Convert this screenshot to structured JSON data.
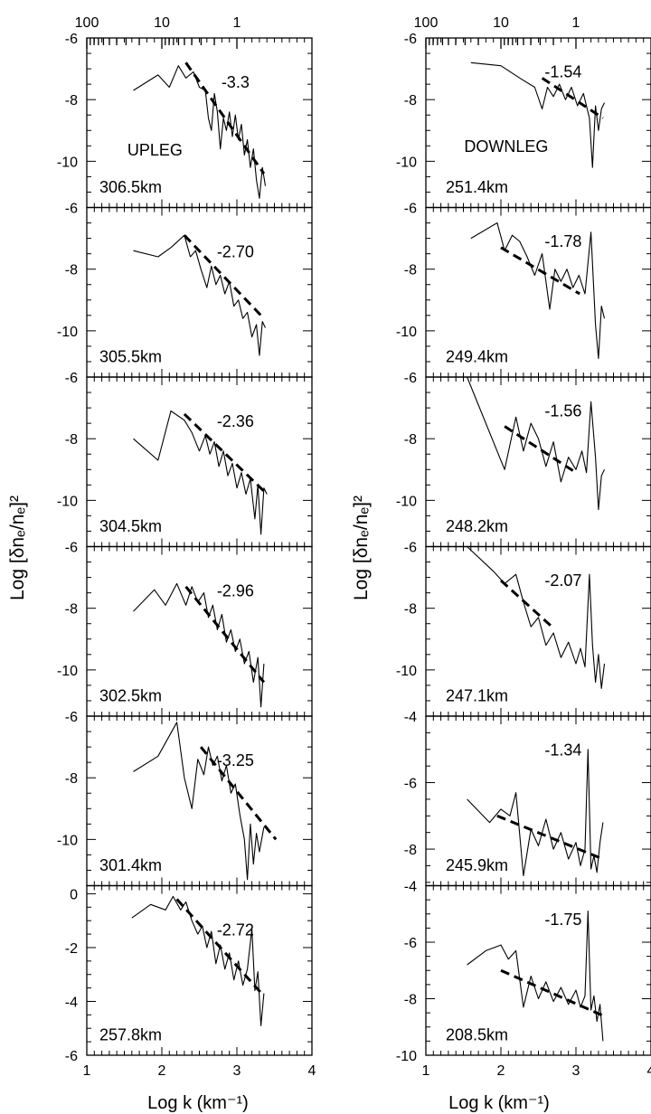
{
  "figure": {
    "x_axis_label": "Log k (km⁻¹)",
    "y_axis_label": "Log [δnₑ/nₑ]²",
    "top_axis_ticks": [
      "100",
      "10",
      "1"
    ],
    "bottom_axis_ticks": [
      "1",
      "2",
      "3",
      "4"
    ]
  },
  "chart_data": [
    {
      "type": "line",
      "column": "left",
      "row": 0,
      "heading": "UPLEG",
      "altitude_label": "306.5km",
      "slope_label": "-3.3",
      "xlim": [
        1,
        4
      ],
      "ylim": [
        -11.5,
        -6
      ],
      "yticks": [
        -6,
        -8,
        -10
      ],
      "x": [
        1.62,
        1.95,
        2.1,
        2.22,
        2.32,
        2.42,
        2.5,
        2.58,
        2.62,
        2.66,
        2.7,
        2.74,
        2.78,
        2.82,
        2.86,
        2.9,
        2.94,
        2.98,
        3.02,
        3.06,
        3.1,
        3.14,
        3.18,
        3.22,
        3.26,
        3.3,
        3.34,
        3.38
      ],
      "y": [
        -7.7,
        -7.2,
        -7.6,
        -6.9,
        -7.3,
        -7.1,
        -7.6,
        -7.7,
        -8.6,
        -9.0,
        -7.8,
        -8.4,
        -9.6,
        -8.6,
        -9.0,
        -8.4,
        -9.2,
        -8.5,
        -9.3,
        -8.8,
        -9.8,
        -9.3,
        -10.2,
        -9.6,
        -10.6,
        -11.2,
        -10.2,
        -10.8
      ],
      "fit": {
        "x": [
          2.32,
          3.36
        ],
        "y": [
          -6.8,
          -10.4
        ]
      }
    },
    {
      "type": "line",
      "column": "left",
      "row": 1,
      "altitude_label": "305.5km",
      "slope_label": "-2.70",
      "xlim": [
        1,
        4
      ],
      "ylim": [
        -11.5,
        -6
      ],
      "yticks": [
        -6,
        -8,
        -10
      ],
      "x": [
        1.62,
        1.95,
        2.12,
        2.3,
        2.38,
        2.45,
        2.52,
        2.6,
        2.66,
        2.72,
        2.78,
        2.84,
        2.9,
        2.96,
        3.02,
        3.08,
        3.14,
        3.2,
        3.26,
        3.3,
        3.34,
        3.38
      ],
      "y": [
        -7.4,
        -7.6,
        -7.3,
        -6.9,
        -7.6,
        -7.4,
        -8.0,
        -8.6,
        -7.9,
        -8.5,
        -8.2,
        -8.8,
        -8.4,
        -9.2,
        -9.0,
        -9.6,
        -9.4,
        -10.2,
        -9.8,
        -10.8,
        -9.7,
        -9.9
      ],
      "fit": {
        "x": [
          2.3,
          3.36
        ],
        "y": [
          -6.9,
          -9.6
        ]
      }
    },
    {
      "type": "line",
      "column": "left",
      "row": 2,
      "altitude_label": "304.5km",
      "slope_label": "-2.36",
      "xlim": [
        1,
        4
      ],
      "ylim": [
        -11.5,
        -6
      ],
      "yticks": [
        -6,
        -8,
        -10
      ],
      "x": [
        1.62,
        1.95,
        2.12,
        2.3,
        2.4,
        2.5,
        2.58,
        2.64,
        2.7,
        2.76,
        2.82,
        2.88,
        2.94,
        3.0,
        3.06,
        3.12,
        3.18,
        3.24,
        3.28,
        3.32,
        3.36,
        3.4
      ],
      "y": [
        -8.0,
        -8.7,
        -7.1,
        -7.4,
        -7.8,
        -8.4,
        -7.9,
        -8.5,
        -8.1,
        -8.9,
        -8.4,
        -9.2,
        -8.8,
        -9.6,
        -9.1,
        -9.8,
        -9.3,
        -10.6,
        -9.5,
        -11.1,
        -9.6,
        -9.8
      ],
      "fit": {
        "x": [
          2.3,
          3.36
        ],
        "y": [
          -7.2,
          -9.7
        ]
      }
    },
    {
      "type": "line",
      "column": "left",
      "row": 3,
      "altitude_label": "302.5km",
      "slope_label": "-2.96",
      "xlim": [
        1,
        4
      ],
      "ylim": [
        -11.5,
        -6
      ],
      "yticks": [
        -6,
        -8,
        -10
      ],
      "x": [
        1.62,
        1.9,
        2.05,
        2.2,
        2.32,
        2.4,
        2.48,
        2.56,
        2.62,
        2.68,
        2.74,
        2.8,
        2.86,
        2.92,
        2.98,
        3.04,
        3.1,
        3.16,
        3.22,
        3.28,
        3.32,
        3.36
      ],
      "y": [
        -8.1,
        -7.4,
        -7.9,
        -7.2,
        -7.9,
        -7.3,
        -7.8,
        -7.5,
        -8.3,
        -7.9,
        -8.7,
        -8.2,
        -9.1,
        -8.7,
        -9.4,
        -9.0,
        -9.8,
        -9.4,
        -10.4,
        -9.6,
        -11.2,
        -9.8
      ],
      "fit": {
        "x": [
          2.32,
          3.36
        ],
        "y": [
          -7.3,
          -10.4
        ]
      }
    },
    {
      "type": "line",
      "column": "left",
      "row": 4,
      "altitude_label": "301.4km",
      "slope_label": "-3.25",
      "xlim": [
        1,
        4
      ],
      "ylim": [
        -11.5,
        -6
      ],
      "yticks": [
        -6,
        -8,
        -10
      ],
      "x": [
        1.62,
        1.95,
        2.2,
        2.3,
        2.4,
        2.48,
        2.56,
        2.62,
        2.68,
        2.74,
        2.8,
        2.86,
        2.92,
        2.98,
        3.04,
        3.1,
        3.14,
        3.18,
        3.22,
        3.26,
        3.3,
        3.36
      ],
      "y": [
        -7.8,
        -7.3,
        -6.2,
        -8.0,
        -9.0,
        -7.4,
        -7.9,
        -7.0,
        -7.6,
        -7.3,
        -8.1,
        -7.6,
        -8.5,
        -8.2,
        -9.2,
        -10.0,
        -11.3,
        -9.5,
        -10.8,
        -9.8,
        -10.4,
        -9.6
      ],
      "fit": {
        "x": [
          2.52,
          3.52
        ],
        "y": [
          -7.0,
          -10.0
        ]
      }
    },
    {
      "type": "line",
      "column": "left",
      "row": 5,
      "altitude_label": "257.8km",
      "slope_label": "-2.72",
      "xlim": [
        1,
        4
      ],
      "ylim": [
        -6,
        0.3
      ],
      "yticks": [
        0,
        -2,
        -4,
        -6
      ],
      "x": [
        1.6,
        1.85,
        2.05,
        2.15,
        2.25,
        2.32,
        2.4,
        2.48,
        2.54,
        2.6,
        2.66,
        2.72,
        2.78,
        2.84,
        2.9,
        2.96,
        3.02,
        3.08,
        3.14,
        3.2,
        3.24,
        3.28,
        3.32,
        3.36
      ],
      "y": [
        -0.9,
        -0.4,
        -0.6,
        -0.1,
        -0.6,
        -0.3,
        -1.0,
        -1.5,
        -1.2,
        -2.0,
        -1.4,
        -2.6,
        -1.9,
        -2.8,
        -2.2,
        -3.2,
        -2.5,
        -3.4,
        -2.8,
        -1.3,
        -3.6,
        -2.9,
        -4.9,
        -3.7
      ],
      "fit": {
        "x": [
          2.2,
          3.36
        ],
        "y": [
          -0.2,
          -3.8
        ]
      }
    },
    {
      "type": "line",
      "column": "right",
      "row": 0,
      "heading": "DOWNLEG",
      "altitude_label": "251.4km",
      "slope_label": "-1.54",
      "xlim": [
        1,
        4
      ],
      "ylim": [
        -11.5,
        -6
      ],
      "yticks": [
        -6,
        -8,
        -10
      ],
      "x": [
        1.6,
        2.0,
        2.25,
        2.45,
        2.55,
        2.62,
        2.7,
        2.78,
        2.86,
        2.94,
        3.02,
        3.1,
        3.18,
        3.22,
        3.26,
        3.3,
        3.34,
        3.38
      ],
      "y": [
        -6.8,
        -6.9,
        -7.3,
        -7.6,
        -8.3,
        -7.6,
        -7.9,
        -7.5,
        -8.0,
        -7.6,
        -8.2,
        -7.8,
        -8.6,
        -10.2,
        -8.2,
        -9.0,
        -8.3,
        -8.1
      ],
      "fit": {
        "x": [
          2.55,
          3.36
        ],
        "y": [
          -7.3,
          -8.6
        ]
      }
    },
    {
      "type": "line",
      "column": "right",
      "row": 1,
      "altitude_label": "249.4km",
      "slope_label": "-1.78",
      "xlim": [
        1,
        4
      ],
      "ylim": [
        -11.5,
        -6
      ],
      "yticks": [
        -6,
        -8,
        -10
      ],
      "x": [
        1.6,
        1.95,
        2.05,
        2.15,
        2.25,
        2.35,
        2.45,
        2.55,
        2.65,
        2.72,
        2.8,
        2.88,
        2.96,
        3.04,
        3.12,
        3.2,
        3.26,
        3.3,
        3.34,
        3.38
      ],
      "y": [
        -7.0,
        -6.5,
        -7.4,
        -6.9,
        -7.1,
        -7.6,
        -8.2,
        -7.5,
        -9.3,
        -8.0,
        -8.4,
        -8.0,
        -8.6,
        -8.2,
        -8.8,
        -6.8,
        -9.8,
        -10.9,
        -9.2,
        -9.6
      ],
      "fit": {
        "x": [
          2.0,
          3.05
        ],
        "y": [
          -7.3,
          -8.8
        ]
      }
    },
    {
      "type": "line",
      "column": "right",
      "row": 2,
      "altitude_label": "248.2km",
      "slope_label": "-1.56",
      "xlim": [
        1,
        4
      ],
      "ylim": [
        -11.5,
        -6
      ],
      "yticks": [
        -6,
        -8,
        -10
      ],
      "x": [
        1.55,
        2.05,
        2.2,
        2.3,
        2.4,
        2.5,
        2.6,
        2.7,
        2.8,
        2.9,
        3.0,
        3.08,
        3.14,
        3.2,
        3.26,
        3.3,
        3.34,
        3.38
      ],
      "y": [
        -6.0,
        -9.0,
        -7.3,
        -8.4,
        -7.5,
        -8.0,
        -8.9,
        -8.1,
        -9.4,
        -8.6,
        -9.0,
        -8.4,
        -9.1,
        -6.8,
        -8.6,
        -10.3,
        -9.2,
        -9.0
      ],
      "fit": {
        "x": [
          2.05,
          3.0
        ],
        "y": [
          -7.6,
          -9.1
        ]
      }
    },
    {
      "type": "line",
      "column": "right",
      "row": 3,
      "altitude_label": "247.1km",
      "slope_label": "-2.07",
      "xlim": [
        1,
        4
      ],
      "ylim": [
        -11.5,
        -6
      ],
      "yticks": [
        -6,
        -8,
        -10
      ],
      "x": [
        1.55,
        1.9,
        2.05,
        2.2,
        2.3,
        2.4,
        2.5,
        2.6,
        2.7,
        2.8,
        2.9,
        3.0,
        3.06,
        3.12,
        3.18,
        3.22,
        3.26,
        3.3,
        3.34,
        3.38
      ],
      "y": [
        -6.0,
        -6.8,
        -7.2,
        -6.9,
        -7.8,
        -8.6,
        -8.3,
        -9.2,
        -8.8,
        -9.6,
        -9.1,
        -9.8,
        -9.3,
        -9.9,
        -6.9,
        -9.2,
        -10.4,
        -9.5,
        -10.6,
        -9.8
      ],
      "fit": {
        "x": [
          2.0,
          2.68
        ],
        "y": [
          -7.1,
          -8.6
        ]
      }
    },
    {
      "type": "line",
      "column": "right",
      "row": 4,
      "altitude_label": "245.9km",
      "slope_label": "-1.34",
      "xlim": [
        1,
        4
      ],
      "ylim": [
        -9.1,
        -4
      ],
      "yticks": [
        -4,
        -6,
        -8
      ],
      "x": [
        1.55,
        1.85,
        2.0,
        2.12,
        2.2,
        2.3,
        2.4,
        2.5,
        2.6,
        2.7,
        2.8,
        2.9,
        3.0,
        3.06,
        3.12,
        3.16,
        3.2,
        3.24,
        3.28,
        3.32,
        3.36
      ],
      "y": [
        -6.5,
        -7.2,
        -6.8,
        -7.0,
        -6.3,
        -8.8,
        -7.4,
        -7.9,
        -7.1,
        -8.0,
        -7.5,
        -8.3,
        -7.8,
        -8.5,
        -8.0,
        -5.0,
        -8.6,
        -8.2,
        -8.7,
        -7.8,
        -7.2
      ],
      "fit": {
        "x": [
          1.95,
          3.36
        ],
        "y": [
          -7.0,
          -8.3
        ]
      }
    },
    {
      "type": "line",
      "column": "right",
      "row": 5,
      "altitude_label": "208.5km",
      "slope_label": "-1.75",
      "xlim": [
        1,
        4
      ],
      "ylim": [
        -10,
        -4
      ],
      "yticks": [
        -4,
        -6,
        -8,
        -10
      ],
      "x": [
        1.55,
        1.8,
        2.0,
        2.1,
        2.2,
        2.3,
        2.4,
        2.5,
        2.6,
        2.7,
        2.8,
        2.9,
        3.0,
        3.06,
        3.12,
        3.16,
        3.2,
        3.24,
        3.28,
        3.32,
        3.36
      ],
      "y": [
        -6.8,
        -6.3,
        -6.1,
        -6.6,
        -6.3,
        -8.3,
        -7.2,
        -8.0,
        -7.4,
        -8.1,
        -7.6,
        -8.2,
        -7.7,
        -8.3,
        -7.9,
        -4.9,
        -8.4,
        -7.9,
        -8.8,
        -8.2,
        -9.5
      ],
      "fit": {
        "x": [
          2.0,
          3.36
        ],
        "y": [
          -7.0,
          -8.6
        ]
      }
    }
  ]
}
